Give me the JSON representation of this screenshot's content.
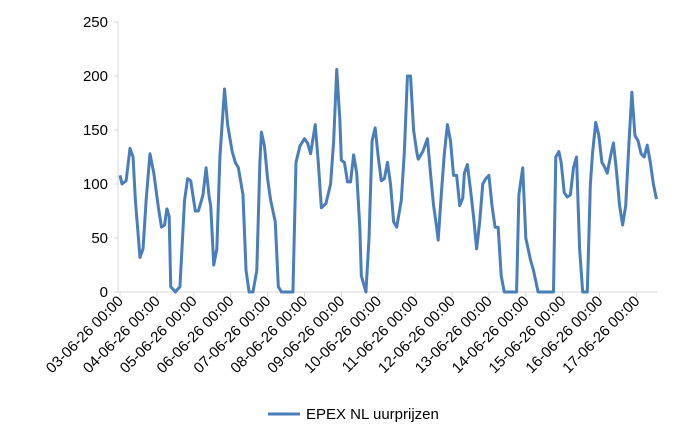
{
  "chart_data": {
    "type": "line",
    "x": [
      0,
      1.3,
      4,
      6.5,
      8.5,
      10,
      13,
      15,
      17,
      19.5,
      22,
      25,
      27,
      29,
      30.5,
      32,
      33,
      36,
      39,
      42,
      44,
      46,
      49,
      51,
      54,
      56,
      58,
      59,
      61,
      63,
      65,
      68,
      70,
      73,
      75,
      77,
      80,
      82,
      84,
      86.5,
      89,
      91,
      92,
      94,
      96,
      98,
      101,
      103,
      105,
      112.5,
      114.5,
      117,
      120,
      122,
      124,
      127,
      129,
      131,
      134,
      137,
      139,
      141,
      143,
      144,
      146,
      148,
      150,
      152,
      154,
      156,
      157,
      160,
      162,
      164,
      166,
      168,
      170,
      172,
      174,
      176,
      178,
      180,
      183,
      185,
      187,
      189,
      191,
      193,
      194,
      197,
      200,
      202,
      204,
      206,
      207,
      209,
      211,
      213,
      215,
      217,
      219,
      221,
      223,
      224,
      226,
      228,
      230,
      232,
      234,
      236,
      238,
      240,
      242,
      244,
      246,
      248,
      250,
      258,
      259.5,
      262,
      264,
      267,
      269,
      272,
      282,
      283.5,
      285.5,
      287,
      289,
      291,
      293,
      295,
      297,
      299,
      301,
      304,
      306,
      307.5,
      309.5,
      311.5,
      313.5,
      315.5,
      317,
      319,
      321,
      323,
      325,
      327,
      329,
      331,
      333,
      335,
      337,
      339,
      341,
      343,
      345,
      347,
      349
    ],
    "series": [
      {
        "name": "EPEX NL uurprijzen",
        "color": "#4a7ebb",
        "values": [
          108,
          100,
          103,
          133,
          125,
          85,
          32,
          40,
          85,
          128,
          110,
          78,
          60,
          62,
          77,
          70,
          5,
          0,
          5,
          85,
          105,
          103,
          75,
          75,
          90,
          115,
          88,
          80,
          25,
          40,
          125,
          188,
          155,
          130,
          120,
          115,
          90,
          20,
          0,
          0,
          20,
          120,
          148,
          135,
          105,
          85,
          65,
          5,
          0,
          0,
          120,
          135,
          142,
          138,
          128,
          155,
          120,
          78,
          82,
          100,
          140,
          206,
          160,
          122,
          120,
          102,
          102,
          127,
          110,
          60,
          15,
          0,
          50,
          140,
          152,
          125,
          103,
          105,
          120,
          100,
          65,
          60,
          85,
          130,
          200,
          200,
          150,
          130,
          123,
          130,
          142,
          110,
          80,
          60,
          48,
          90,
          128,
          155,
          140,
          108,
          108,
          80,
          87,
          110,
          118,
          95,
          70,
          40,
          65,
          100,
          105,
          108,
          80,
          60,
          60,
          15,
          0,
          0,
          90,
          115,
          50,
          30,
          20,
          0,
          0,
          125,
          130,
          120,
          92,
          88,
          90,
          115,
          125,
          40,
          0,
          0,
          100,
          130,
          157,
          145,
          120,
          115,
          110,
          125,
          138,
          112,
          80,
          62,
          80,
          135,
          185,
          145,
          140,
          128,
          125,
          136,
          120,
          100,
          86
        ]
      }
    ],
    "xlim": [
      0,
      350
    ],
    "xticks": [
      {
        "value": 0,
        "label": "03-06-26 00:00"
      },
      {
        "value": 24,
        "label": "04-06-26 00:00"
      },
      {
        "value": 48,
        "label": "05-06-26 00:00"
      },
      {
        "value": 72,
        "label": "06-06-26 00:00"
      },
      {
        "value": 96,
        "label": "07-06-26 00:00"
      },
      {
        "value": 120,
        "label": "08-06-26 00:00"
      },
      {
        "value": 144,
        "label": "09-06-26 00:00"
      },
      {
        "value": 168,
        "label": "10-06-26 00:00"
      },
      {
        "value": 192,
        "label": "11-06-26 00:00"
      },
      {
        "value": 216,
        "label": "12-06-26 00:00"
      },
      {
        "value": 240,
        "label": "13-06-26 00:00"
      },
      {
        "value": 264,
        "label": "14-06-26 00:00"
      },
      {
        "value": 288,
        "label": "15-06-26 00:00"
      },
      {
        "value": 312,
        "label": "16-06-26 00:00"
      },
      {
        "value": 336,
        "label": "17-06-26 00:00"
      }
    ],
    "ylim": [
      0,
      250
    ],
    "yticks": [
      0,
      50,
      100,
      150,
      200,
      250
    ],
    "legend": "bottom"
  }
}
